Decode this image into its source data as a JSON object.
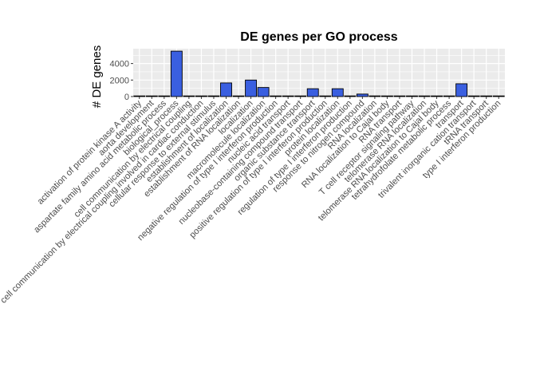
{
  "chart_data": {
    "type": "bar",
    "title": "DE genes per GO process",
    "xlabel": "",
    "ylabel": "# DE genes",
    "ylim": [
      0,
      5800
    ],
    "yticks": [
      0,
      2000,
      4000
    ],
    "grid": true,
    "bar_color": "#3a5fe0",
    "bar_border_color": "#000000",
    "panel_background": "#ebebeb",
    "categories": [
      "activation of protein kinase A activity",
      "aorta development",
      "aspartate family amino acid metabolic process",
      "biological_process",
      "cell communication by electrical coupling",
      "cell communication by electrical coupling involved in cardiac conduction",
      "cellular response to external stimulus",
      "establishment of localization",
      "establishment of RNA localization",
      "localization",
      "macromolecule localization",
      "negative regulation of type I interferon production",
      "nucleic acid transport",
      "nucleobase-containing compound transport",
      "organic substance transport",
      "positive regulation of type I interferon production",
      "protein localization",
      "regulation of type I interferon production",
      "response to nitrogen compound",
      "RNA localization",
      "RNA localization to Cajal body",
      "RNA transport",
      "T cell receptor signaling pathway",
      "telomerase RNA localization",
      "telomerase RNA localization to Cajal body",
      "tetrahydrofolate metabolic process",
      "transport",
      "trivalent inorganic cation transport",
      "tRNA transport",
      "type I interferon production"
    ],
    "values": [
      5,
      5,
      5,
      5500,
      5,
      5,
      80,
      1650,
      60,
      2000,
      1100,
      10,
      50,
      60,
      950,
      10,
      950,
      10,
      300,
      80,
      5,
      50,
      50,
      5,
      5,
      10,
      1550,
      5,
      5,
      10
    ]
  }
}
